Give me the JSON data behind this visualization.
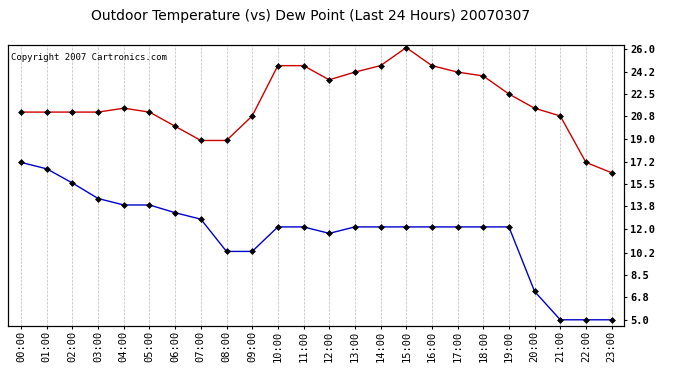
{
  "title": "Outdoor Temperature (vs) Dew Point (Last 24 Hours) 20070307",
  "copyright": "Copyright 2007 Cartronics.com",
  "hours": [
    "00:00",
    "01:00",
    "02:00",
    "03:00",
    "04:00",
    "05:00",
    "06:00",
    "07:00",
    "08:00",
    "09:00",
    "10:00",
    "11:00",
    "12:00",
    "13:00",
    "14:00",
    "15:00",
    "16:00",
    "17:00",
    "18:00",
    "19:00",
    "20:00",
    "21:00",
    "22:00",
    "23:00"
  ],
  "temp": [
    21.1,
    21.1,
    21.1,
    21.1,
    21.4,
    21.1,
    20.0,
    18.9,
    18.9,
    20.8,
    24.7,
    24.7,
    23.6,
    24.2,
    24.7,
    26.1,
    24.7,
    24.2,
    23.9,
    22.5,
    21.4,
    20.8,
    17.2,
    16.4
  ],
  "dew": [
    17.2,
    16.7,
    15.6,
    14.4,
    13.9,
    13.9,
    13.3,
    12.8,
    10.3,
    10.3,
    12.2,
    12.2,
    11.7,
    12.2,
    12.2,
    12.2,
    12.2,
    12.2,
    12.2,
    12.2,
    7.2,
    5.0,
    5.0,
    5.0
  ],
  "temp_color": "#cc0000",
  "dew_color": "#0000cc",
  "bg_color": "#ffffff",
  "plot_bg_color": "#ffffff",
  "grid_color": "#aaaaaa",
  "yticks": [
    5.0,
    6.8,
    8.5,
    10.2,
    12.0,
    13.8,
    15.5,
    17.2,
    19.0,
    20.8,
    22.5,
    24.2,
    26.0
  ],
  "ymin": 4.5,
  "ymax": 26.3,
  "title_fontsize": 10,
  "copyright_fontsize": 6.5,
  "tick_fontsize": 7.5,
  "marker": "D",
  "marker_size": 3,
  "linewidth": 1.0
}
